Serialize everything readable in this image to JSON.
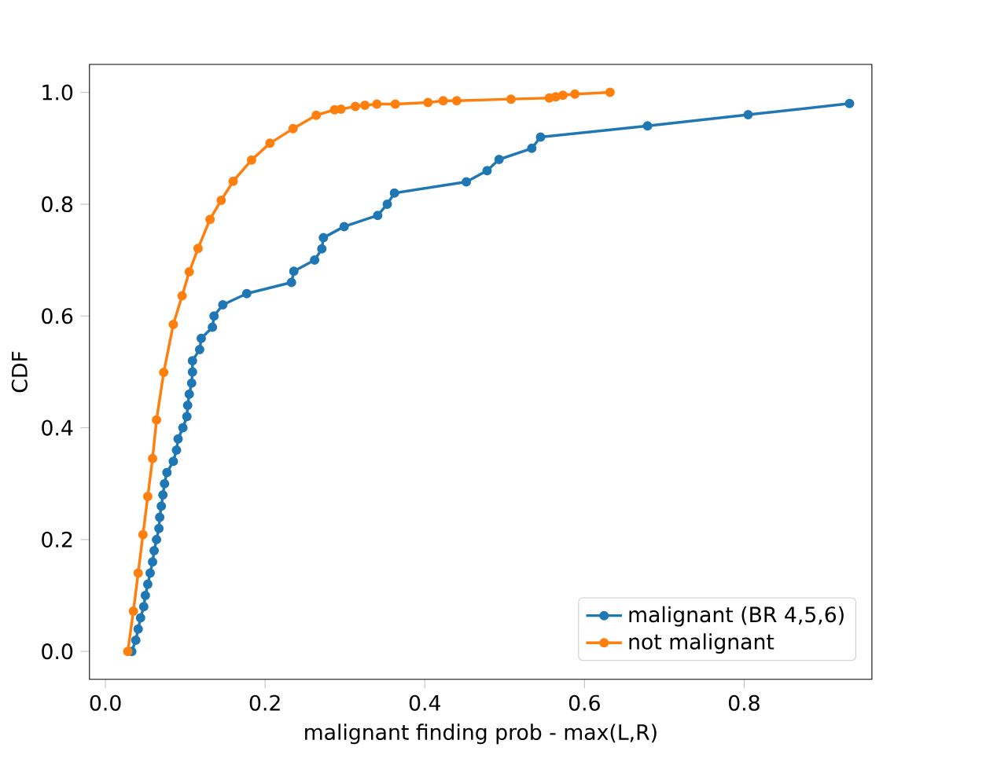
{
  "chart_data": {
    "type": "line",
    "xlabel": "malignant finding prob - max(L,R)",
    "ylabel": "CDF",
    "xlim": [
      -0.02,
      0.96
    ],
    "ylim": [
      -0.05,
      1.05
    ],
    "xticks": [
      {
        "value": 0,
        "label": "0.0"
      },
      {
        "value": 0.2,
        "label": "0.2"
      },
      {
        "value": 0.4,
        "label": "0.4"
      },
      {
        "value": 0.6,
        "label": "0.6"
      },
      {
        "value": 0.8,
        "label": "0.8"
      }
    ],
    "yticks": [
      {
        "value": 0,
        "label": "0.0"
      },
      {
        "value": 0.2,
        "label": "0.2"
      },
      {
        "value": 0.4,
        "label": "0.4"
      },
      {
        "value": 0.6,
        "label": "0.6"
      },
      {
        "value": 0.8,
        "label": "0.8"
      },
      {
        "value": 1,
        "label": "1.0"
      }
    ],
    "legend": "bottom right",
    "marker": "circle",
    "grid": false,
    "series": [
      {
        "name": "malignant (BR 4,5,6)",
        "color": "#1f77b4",
        "x": [
          0.033,
          0.038,
          0.041,
          0.044,
          0.048,
          0.05,
          0.053,
          0.056,
          0.059,
          0.061,
          0.064,
          0.067,
          0.068,
          0.07,
          0.072,
          0.074,
          0.077,
          0.085,
          0.089,
          0.091,
          0.097,
          0.102,
          0.103,
          0.105,
          0.108,
          0.109,
          0.109,
          0.118,
          0.12,
          0.134,
          0.136,
          0.147,
          0.177,
          0.233,
          0.236,
          0.262,
          0.271,
          0.273,
          0.299,
          0.341,
          0.353,
          0.362,
          0.452,
          0.478,
          0.493,
          0.534,
          0.545,
          0.679,
          0.805,
          0.932
        ],
        "values": [
          0,
          0.02,
          0.04,
          0.06,
          0.08,
          0.1,
          0.12,
          0.14,
          0.16,
          0.18,
          0.2,
          0.22,
          0.24,
          0.26,
          0.28,
          0.3,
          0.32,
          0.34,
          0.36,
          0.38,
          0.4,
          0.42,
          0.44,
          0.46,
          0.48,
          0.5,
          0.52,
          0.54,
          0.56,
          0.58,
          0.6,
          0.62,
          0.64,
          0.66,
          0.68,
          0.7,
          0.72,
          0.74,
          0.76,
          0.78,
          0.8,
          0.82,
          0.84,
          0.86,
          0.88,
          0.9,
          0.92,
          0.94,
          0.96,
          0.98
        ]
      },
      {
        "name": "not malignant",
        "color": "#ff7f0e",
        "x": [
          0.028,
          0.035,
          0.041,
          0.047,
          0.053,
          0.059,
          0.064,
          0.073,
          0.085,
          0.096,
          0.105,
          0.116,
          0.131,
          0.145,
          0.16,
          0.183,
          0.206,
          0.235,
          0.264,
          0.287,
          0.295,
          0.313,
          0.325,
          0.34,
          0.363,
          0.404,
          0.423,
          0.44,
          0.508,
          0.556,
          0.564,
          0.573,
          0.588,
          0.632
        ],
        "values": [
          0,
          0.072,
          0.14,
          0.209,
          0.277,
          0.345,
          0.414,
          0.499,
          0.585,
          0.636,
          0.679,
          0.721,
          0.773,
          0.807,
          0.841,
          0.879,
          0.909,
          0.935,
          0.959,
          0.969,
          0.97,
          0.975,
          0.977,
          0.979,
          0.979,
          0.982,
          0.985,
          0.985,
          0.988,
          0.99,
          0.992,
          0.995,
          0.997,
          1.0
        ]
      }
    ]
  }
}
